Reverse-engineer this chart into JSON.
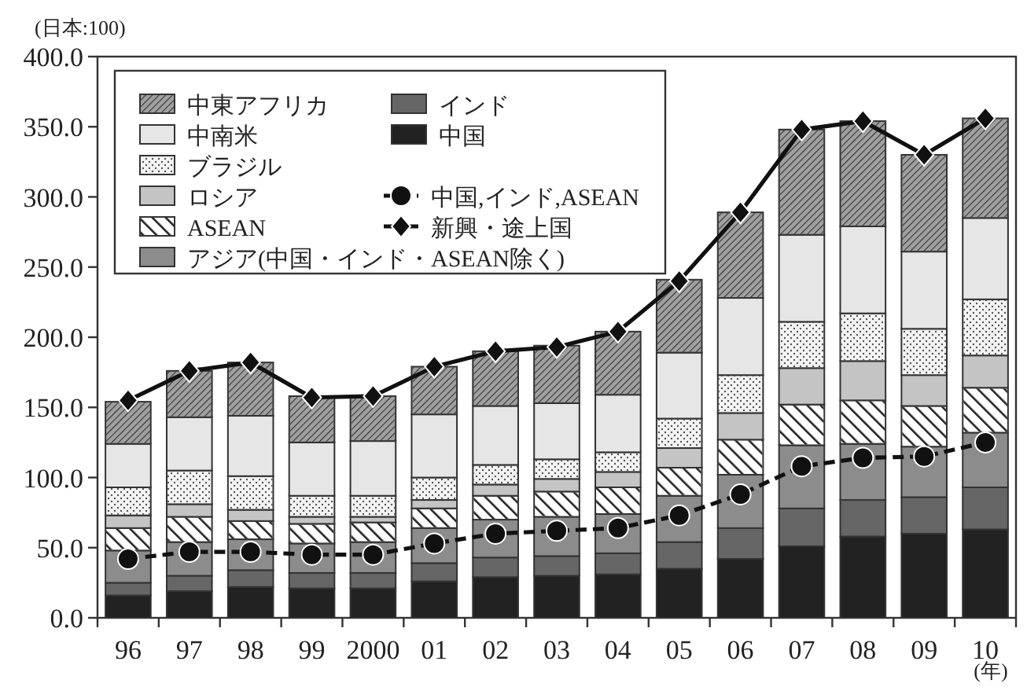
{
  "chart_data": {
    "type": "bar",
    "stacked": true,
    "ylabel": "(日本:100)",
    "xlabel": "(年)",
    "legend": "top left",
    "grid": false,
    "categories": [
      "96",
      "97",
      "98",
      "99",
      "2000",
      "01",
      "02",
      "03",
      "04",
      "05",
      "06",
      "07",
      "08",
      "09",
      "10"
    ],
    "ylim": [
      0,
      400
    ],
    "yticks": [
      {
        "value": 0,
        "label": "0.0"
      },
      {
        "value": 50,
        "label": "50.0"
      },
      {
        "value": 100,
        "label": "100.0"
      },
      {
        "value": 150,
        "label": "150.0"
      },
      {
        "value": 200,
        "label": "200.0"
      },
      {
        "value": 250,
        "label": "250.0"
      },
      {
        "value": 300,
        "label": "300.0"
      },
      {
        "value": 350,
        "label": "350.0"
      },
      {
        "value": 400,
        "label": "400.0"
      }
    ],
    "series": [
      {
        "name": "中国",
        "color": "#222222",
        "values": [
          16,
          19,
          22,
          21,
          21,
          26,
          29,
          30,
          31,
          35,
          42,
          51,
          58,
          60,
          63
        ]
      },
      {
        "name": "インド",
        "color": "#666666",
        "values": [
          9,
          11,
          12,
          11,
          11,
          13,
          14,
          14,
          15,
          19,
          22,
          27,
          26,
          26,
          30
        ]
      },
      {
        "name": "アジア(中国・インド・ASEAN除く)",
        "color": "#8c8c8c",
        "values": [
          23,
          24,
          22,
          21,
          22,
          25,
          27,
          28,
          28,
          33,
          38,
          45,
          40,
          36,
          39
        ]
      },
      {
        "name": "ASEAN",
        "color": "#ffffff",
        "values": [
          16,
          18,
          13,
          14,
          14,
          14,
          17,
          18,
          19,
          20,
          25,
          29,
          31,
          29,
          32
        ]
      },
      {
        "name": "ロシア",
        "color": "#c4c4c4",
        "values": [
          9,
          9,
          8,
          5,
          4,
          6,
          8,
          9,
          11,
          14,
          19,
          26,
          28,
          22,
          23
        ]
      },
      {
        "name": "ブラジル",
        "color": "#f4f4f4",
        "values": [
          20,
          24,
          24,
          15,
          15,
          16,
          14,
          14,
          14,
          21,
          27,
          33,
          34,
          33,
          40
        ]
      },
      {
        "name": "中南米",
        "color": "#e6e6e6",
        "values": [
          31,
          38,
          43,
          38,
          39,
          45,
          42,
          40,
          41,
          47,
          55,
          62,
          62,
          55,
          58
        ]
      },
      {
        "name": "中東アフリカ",
        "color": "#a0a0a0",
        "values": [
          30,
          33,
          38,
          33,
          32,
          34,
          39,
          41,
          45,
          52,
          61,
          75,
          75,
          69,
          71
        ]
      },
      {
        "name": "中国,インド,ASEAN",
        "type": "line",
        "color": "#111111",
        "marker": "circle",
        "line_style": "dashed",
        "values": [
          42,
          47,
          47,
          45,
          45,
          53,
          60,
          62,
          64,
          73,
          88,
          108,
          114,
          115,
          125
        ]
      },
      {
        "name": "新興・途上国",
        "type": "line",
        "color": "#111111",
        "marker": "diamond",
        "line_style": "solid",
        "values": [
          155,
          176,
          182,
          157,
          158,
          179,
          190,
          193,
          204,
          240,
          289,
          348,
          354,
          330,
          356
        ]
      }
    ]
  }
}
